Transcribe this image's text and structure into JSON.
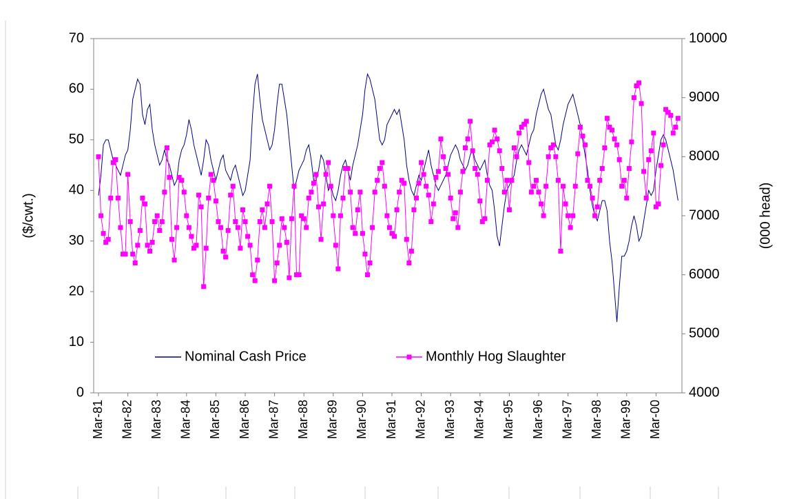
{
  "chart_data": {
    "type": "line",
    "y_label": "($/cwt.)",
    "y2_label": "(000 head)",
    "categories": [
      "Mar-81",
      null,
      null,
      null,
      null,
      null,
      null,
      null,
      null,
      null,
      null,
      null,
      "Mar-82",
      null,
      null,
      null,
      null,
      null,
      null,
      null,
      null,
      null,
      null,
      null,
      "Mar-83",
      null,
      null,
      null,
      null,
      null,
      null,
      null,
      null,
      null,
      null,
      null,
      "Mar-84",
      null,
      null,
      null,
      null,
      null,
      null,
      null,
      null,
      null,
      null,
      null,
      "Mar-85",
      null,
      null,
      null,
      null,
      null,
      null,
      null,
      null,
      null,
      null,
      null,
      "Mar-86",
      null,
      null,
      null,
      null,
      null,
      null,
      null,
      null,
      null,
      null,
      null,
      "Mar-87",
      null,
      null,
      null,
      null,
      null,
      null,
      null,
      null,
      null,
      null,
      null,
      "Mar-88",
      null,
      null,
      null,
      null,
      null,
      null,
      null,
      null,
      null,
      null,
      null,
      "Mar-89",
      null,
      null,
      null,
      null,
      null,
      null,
      null,
      null,
      null,
      null,
      null,
      "Mar-90",
      null,
      null,
      null,
      null,
      null,
      null,
      null,
      null,
      null,
      null,
      null,
      "Mar-91",
      null,
      null,
      null,
      null,
      null,
      null,
      null,
      null,
      null,
      null,
      null,
      "Mar-92",
      null,
      null,
      null,
      null,
      null,
      null,
      null,
      null,
      null,
      null,
      null,
      "Mar-93",
      null,
      null,
      null,
      null,
      null,
      null,
      null,
      null,
      null,
      null,
      null,
      "Mar-94",
      null,
      null,
      null,
      null,
      null,
      null,
      null,
      null,
      null,
      null,
      null,
      "Mar-95",
      null,
      null,
      null,
      null,
      null,
      null,
      null,
      null,
      null,
      null,
      null,
      "Mar-96",
      null,
      null,
      null,
      null,
      null,
      null,
      null,
      null,
      null,
      null,
      null,
      "Mar-97",
      null,
      null,
      null,
      null,
      null,
      null,
      null,
      null,
      null,
      null,
      null,
      "Mar-98",
      null,
      null,
      null,
      null,
      null,
      null,
      null,
      null,
      null,
      null,
      null,
      "Mar-99",
      null,
      null,
      null,
      null,
      null,
      null,
      null,
      null,
      null,
      null,
      null,
      "Mar-00",
      null,
      null,
      null,
      null,
      null,
      null,
      null,
      null,
      null
    ],
    "series": [
      {
        "name": "Nominal Cash Price",
        "color": "#000080",
        "markers": false,
        "values": [
          39,
          43,
          49,
          50,
          50,
          48,
          46,
          45,
          44,
          43,
          45,
          47,
          48,
          52,
          58,
          60,
          62,
          61,
          55,
          53,
          56,
          57,
          52,
          49,
          47,
          45,
          46,
          48,
          46,
          45,
          43,
          41,
          42,
          46,
          48,
          49,
          51,
          54,
          52,
          49,
          47,
          45,
          43,
          46,
          50,
          49,
          46,
          44,
          42,
          44,
          46,
          47,
          44,
          43,
          42,
          44,
          45,
          43,
          41,
          39,
          40,
          43,
          46,
          55,
          61,
          63,
          58,
          54,
          52,
          50,
          48,
          49,
          52,
          57,
          61,
          61,
          58,
          55,
          50,
          45,
          40,
          42,
          44,
          45,
          46,
          48,
          49,
          46,
          42,
          42,
          44,
          47,
          46,
          43,
          40,
          41,
          39,
          38,
          40,
          43,
          45,
          46,
          44,
          42,
          45,
          47,
          49,
          52,
          55,
          60,
          63,
          62,
          60,
          58,
          54,
          50,
          49,
          50,
          53,
          54,
          55,
          56,
          55,
          56,
          53,
          50,
          45,
          42,
          40,
          39,
          41,
          43,
          42,
          44,
          46,
          48,
          45,
          43,
          41,
          40,
          41,
          42,
          43,
          45,
          47,
          48,
          49,
          48,
          46,
          45,
          44,
          45,
          47,
          48,
          46,
          45,
          44,
          45,
          46,
          43,
          41,
          40,
          36,
          31,
          29,
          33,
          37,
          40,
          41,
          42,
          43,
          46,
          48,
          49,
          48,
          47,
          49,
          51,
          52,
          55,
          57,
          59,
          60,
          58,
          56,
          55,
          52,
          49,
          48,
          50,
          53,
          55,
          57,
          58,
          59,
          57,
          55,
          53,
          50,
          47,
          44,
          40,
          37,
          35,
          34,
          36,
          38,
          38,
          36,
          30,
          26,
          20,
          14,
          21,
          27,
          27,
          28,
          30,
          33,
          35,
          33,
          30,
          31,
          34,
          37,
          40,
          39,
          40,
          44,
          47,
          50,
          51,
          50,
          48,
          46,
          44,
          41,
          38
        ]
      },
      {
        "name": "Monthly Hog Slaughter",
        "color": "#ff00ff",
        "markers": true,
        "axis": "y2",
        "values": [
          8000,
          7000,
          6700,
          6550,
          6600,
          7300,
          7900,
          7950,
          7300,
          6800,
          6350,
          6350,
          7700,
          6900,
          6350,
          6200,
          6500,
          6750,
          7300,
          7200,
          6500,
          6400,
          6550,
          6900,
          7000,
          6750,
          6900,
          7400,
          8150,
          7650,
          6600,
          6250,
          6800,
          7650,
          7600,
          7400,
          7000,
          6800,
          6650,
          6450,
          6500,
          7350,
          7150,
          5800,
          6450,
          7300,
          7700,
          7600,
          7250,
          6900,
          6800,
          6400,
          6300,
          6750,
          7350,
          7500,
          6900,
          6800,
          6450,
          7100,
          6900,
          6650,
          6500,
          6000,
          5900,
          6250,
          6900,
          7100,
          6800,
          7200,
          7500,
          6900,
          5900,
          6200,
          6500,
          6950,
          6800,
          6550,
          5950,
          6950,
          7500,
          6000,
          6000,
          7000,
          6950,
          6800,
          7300,
          7400,
          7550,
          7700,
          7150,
          6600,
          7200,
          7700,
          7900,
          7500,
          7000,
          6500,
          6100,
          7000,
          7300,
          7800,
          7800,
          7400,
          6800,
          6700,
          7100,
          7400,
          6700,
          6350,
          6000,
          6200,
          6800,
          7400,
          7600,
          7800,
          7900,
          7500,
          7000,
          6800,
          6700,
          6650,
          7100,
          7400,
          7600,
          7550,
          6600,
          6200,
          6400,
          7100,
          7300,
          7550,
          7900,
          7700,
          7500,
          7350,
          6900,
          7200,
          7650,
          7750,
          8300,
          8000,
          7800,
          7700,
          7300,
          6950,
          7050,
          6800,
          7400,
          7750,
          8150,
          8300,
          8600,
          8100,
          7800,
          7700,
          7250,
          6900,
          6950,
          7600,
          8200,
          8250,
          8450,
          8300,
          8100,
          7800,
          7400,
          7600,
          7100,
          7600,
          8150,
          8000,
          8400,
          8500,
          8550,
          8600,
          7900,
          7400,
          7500,
          7600,
          7400,
          7200,
          7000,
          7500,
          8000,
          8150,
          8200,
          8000,
          7600,
          6400,
          7500,
          7200,
          7000,
          6800,
          7000,
          7500,
          8050,
          8500,
          8350,
          8200,
          7600,
          7500,
          7300,
          7000,
          7150,
          7600,
          7800,
          8150,
          8650,
          8500,
          8450,
          8300,
          8200,
          7950,
          7500,
          7600,
          7300,
          7800,
          8250,
          9000,
          9200,
          9250,
          8900,
          7750,
          7300,
          7950,
          8100,
          8400,
          7150,
          7200,
          7850,
          8200,
          8800,
          8750,
          8700,
          8400,
          8500,
          8650
        ]
      }
    ],
    "ylim": [
      0,
      70
    ],
    "yticks": [
      0,
      10,
      20,
      30,
      40,
      50,
      60,
      70
    ],
    "y2lim": [
      4000,
      10000
    ],
    "y2ticks": [
      4000,
      5000,
      6000,
      7000,
      8000,
      9000,
      10000
    ],
    "grid": false
  }
}
